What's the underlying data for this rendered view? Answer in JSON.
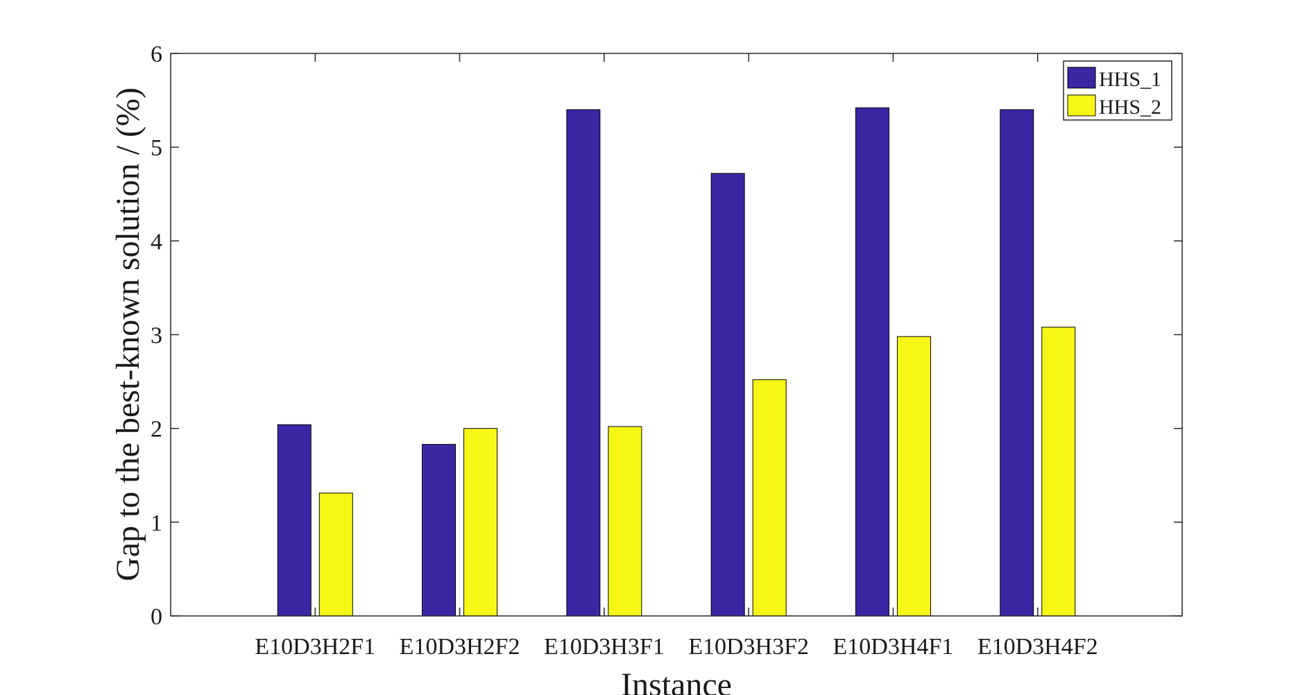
{
  "chart_data": {
    "type": "bar",
    "xlabel": "Instance",
    "ylabel": "Gap to the best-known solution / (%)",
    "categories": [
      "E10D3H2F1",
      "E10D3H2F2",
      "E10D3H3F1",
      "E10D3H3F2",
      "E10D3H4F1",
      "E10D3H4F2"
    ],
    "series": [
      {
        "name": "HHS_1",
        "color": "#3b26a4",
        "values": [
          2.04,
          1.83,
          5.4,
          4.72,
          5.42,
          5.4
        ]
      },
      {
        "name": "HHS_2",
        "color": "#f7f716",
        "values": [
          1.31,
          2.0,
          2.02,
          2.52,
          2.98,
          3.08
        ]
      }
    ],
    "ylim": [
      0,
      6
    ],
    "yticks": [
      "0",
      "1",
      "2",
      "3",
      "4",
      "5",
      "6"
    ],
    "grid": false,
    "legend_position": "top-right"
  }
}
